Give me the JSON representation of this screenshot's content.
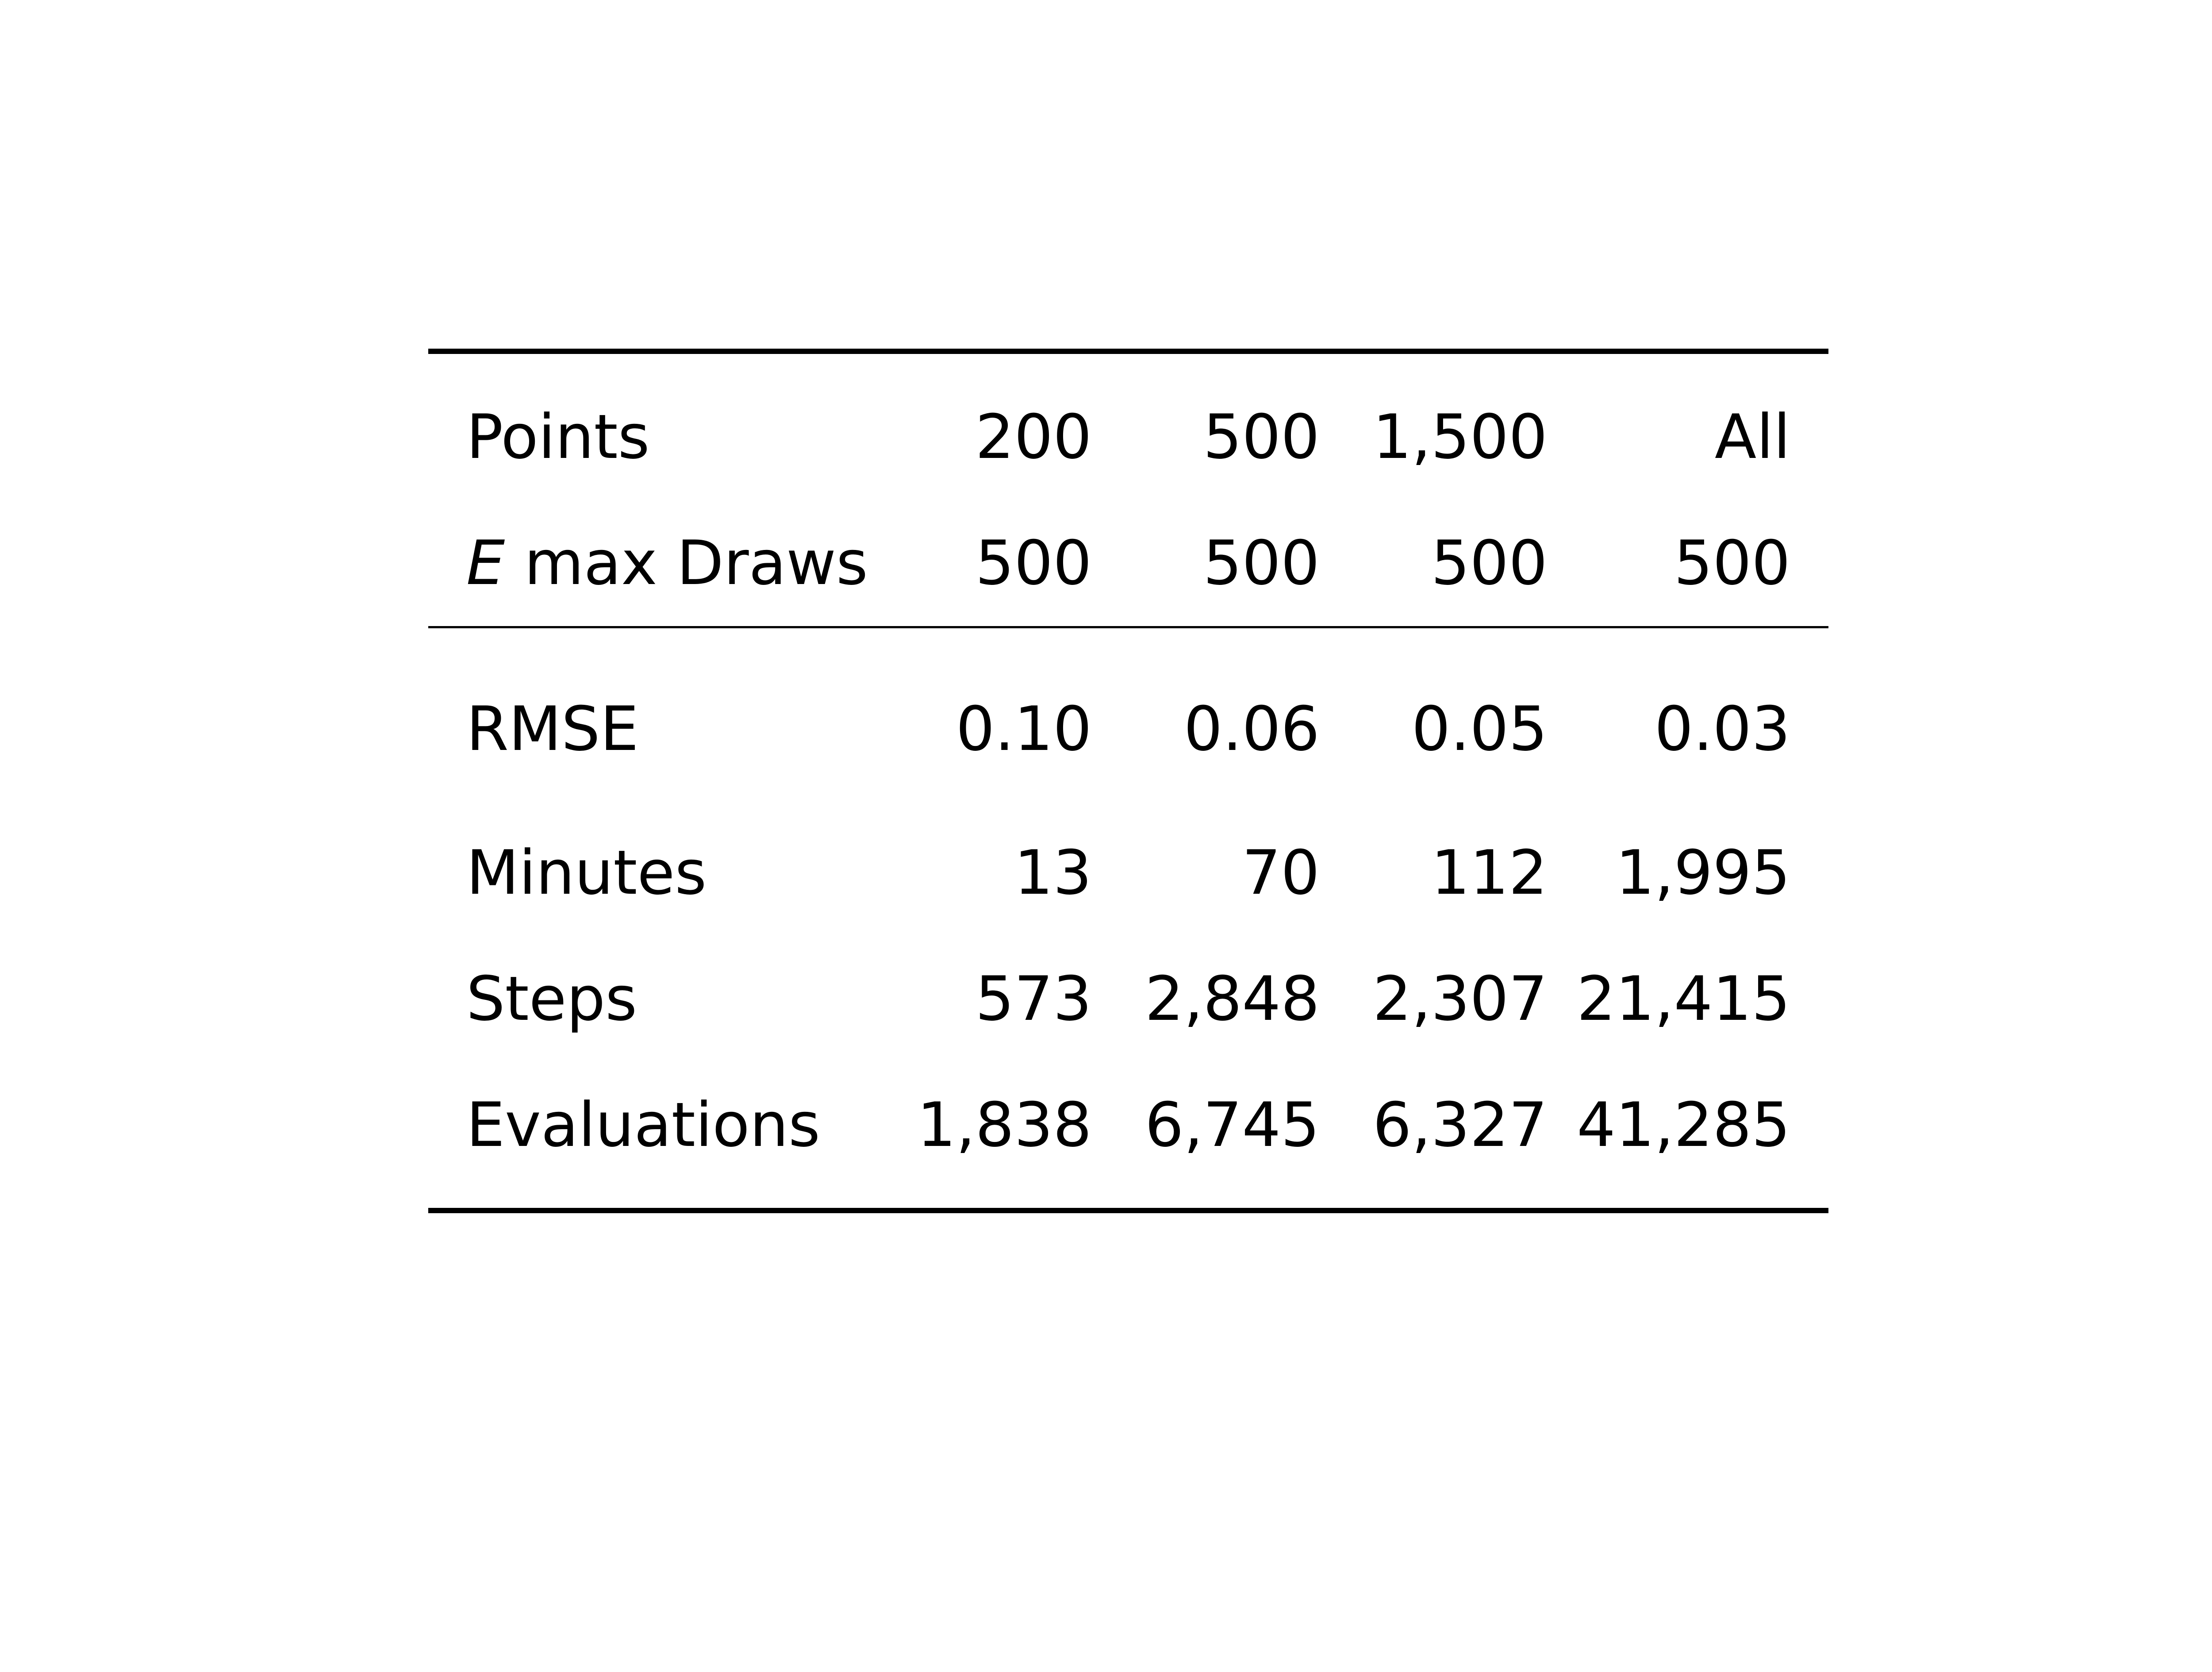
{
  "table": {
    "header": [
      {
        "label": "Points",
        "values": [
          "200",
          "500",
          "1,500",
          "All"
        ]
      },
      {
        "label_var": "E",
        "label_rest": " max Draws",
        "values": [
          "500",
          "500",
          "500",
          "500"
        ]
      }
    ],
    "rows": [
      {
        "label": "RMSE",
        "values": [
          "0.10",
          "0.06",
          "0.05",
          "0.03"
        ]
      },
      {
        "label": "Minutes",
        "values": [
          "13",
          "70",
          "112",
          "1,995"
        ]
      },
      {
        "label": "Steps",
        "values": [
          "573",
          "2,848",
          "2,307",
          "21,415"
        ]
      },
      {
        "label": "Evaluations",
        "values": [
          "1,838",
          "6,745",
          "6,327",
          "41,285"
        ]
      }
    ]
  }
}
